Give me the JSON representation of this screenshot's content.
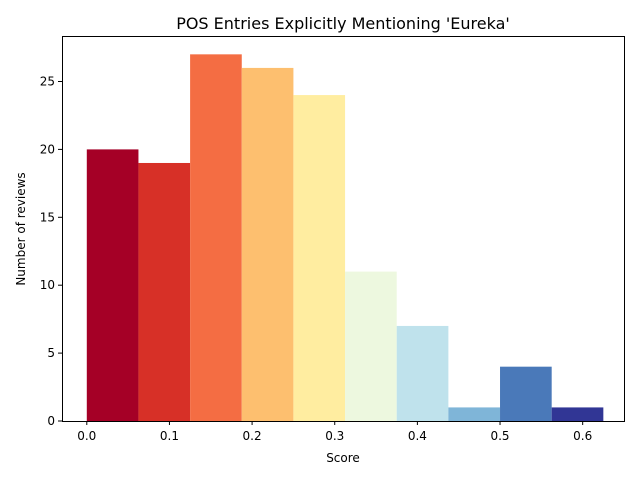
{
  "chart_data": {
    "type": "bar",
    "title": "POS Entries Explicitly Mentioning 'Eureka'",
    "xlabel": "Score",
    "ylabel": "Number of reviews",
    "bin_width": 0.0625,
    "bins": [
      {
        "x": 0.0,
        "value": 20,
        "color": "#a50026"
      },
      {
        "x": 0.0625,
        "value": 19,
        "color": "#d73027"
      },
      {
        "x": 0.125,
        "value": 27,
        "color": "#f46d43"
      },
      {
        "x": 0.1875,
        "value": 26,
        "color": "#fdbf6f"
      },
      {
        "x": 0.25,
        "value": 24,
        "color": "#ffeda0"
      },
      {
        "x": 0.3125,
        "value": 11,
        "color": "#edf8df"
      },
      {
        "x": 0.375,
        "value": 7,
        "color": "#bfe2ec"
      },
      {
        "x": 0.4375,
        "value": 1,
        "color": "#7fb5d8"
      },
      {
        "x": 0.5,
        "value": 4,
        "color": "#4a79b9"
      },
      {
        "x": 0.5625,
        "value": 1,
        "color": "#313695"
      }
    ],
    "xlim": [
      -0.03,
      0.65
    ],
    "ylim": [
      0,
      28.35
    ],
    "xticks": [
      0.0,
      0.1,
      0.2,
      0.3,
      0.4,
      0.5,
      0.6
    ],
    "xtick_labels": [
      "0.0",
      "0.1",
      "0.2",
      "0.3",
      "0.4",
      "0.5",
      "0.6"
    ],
    "yticks": [
      0,
      5,
      10,
      15,
      20,
      25
    ],
    "ytick_labels": [
      "0",
      "5",
      "10",
      "15",
      "20",
      "25"
    ],
    "grid": false,
    "legend": "none"
  }
}
